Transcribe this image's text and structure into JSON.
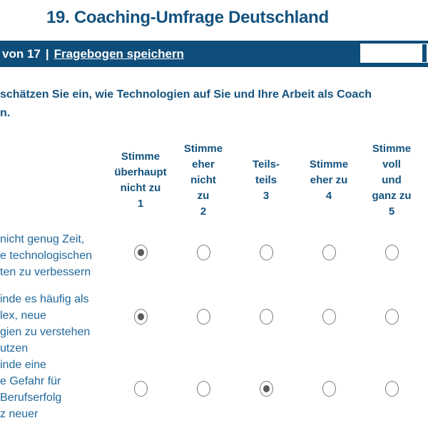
{
  "title": "19. Coaching-Umfrage Deutschland",
  "navbar": {
    "progress": "von 17",
    "separator": "|",
    "save_link": "Fragebogen speichern",
    "input_value": ""
  },
  "question": "schätzen Sie ein, wie Technologien auf Sie und Ihre Arbeit als Coach\nn.",
  "matrix": {
    "scale_headers": [
      "Stimme\nüberhaupt\nnicht zu\n1",
      "Stimme\neher\nnicht\nzu\n2",
      "Teils-\nteils\n3",
      "Stimme\neher zu\n4",
      "Stimme\nvoll\nund\nganz zu\n5"
    ],
    "rows": [
      {
        "label": "nicht genug Zeit,\ne technologischen\nten zu verbessern",
        "selected": 1
      },
      {
        "label": "inde es häufig als\nlex, neue\ngien zu verstehen\nutzen",
        "selected": 1
      },
      {
        "label": "inde eine\ne Gefahr für\nBerufserfolg\nz neuer",
        "selected": 3
      }
    ]
  },
  "colors": {
    "navbar_bg": "#0F4D7A",
    "heading_text": "#14537F",
    "label_text": "#21689B",
    "radio_border": "#7a7a7a",
    "radio_dot": "#5a5a5a"
  }
}
